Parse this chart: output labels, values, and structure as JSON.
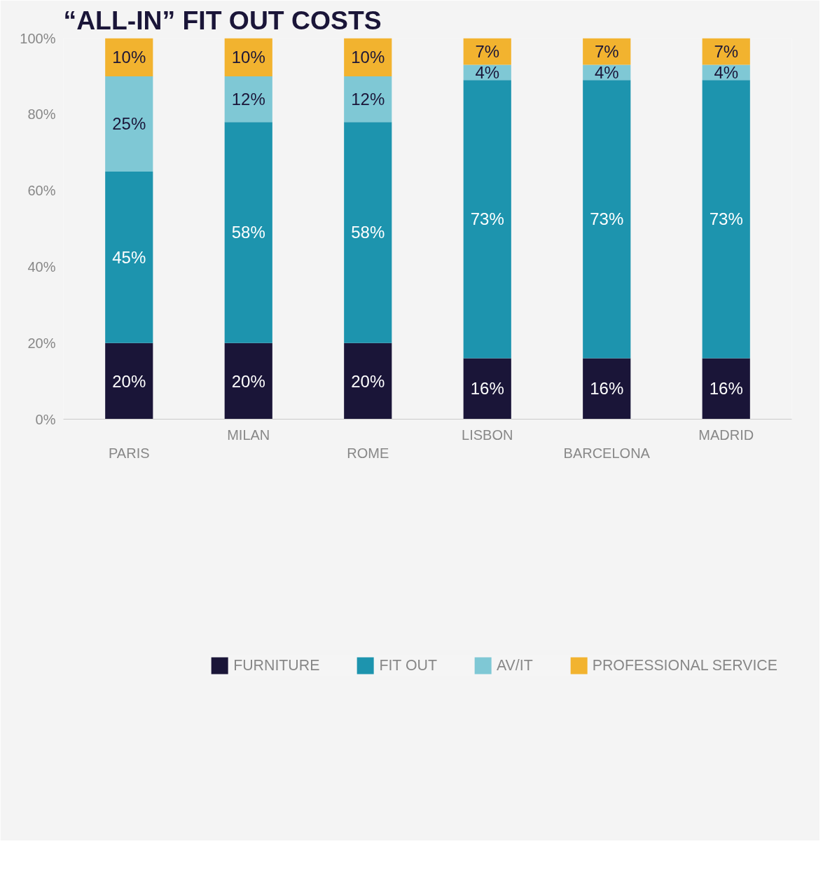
{
  "chart_data": {
    "type": "bar",
    "stacked": true,
    "title": "“ALL-IN” FIT OUT COSTS",
    "categories": [
      "PARIS",
      "MILAN",
      "ROME",
      "LISBON",
      "BARCELONA",
      "MADRID"
    ],
    "series": [
      {
        "name": "FURNITURE",
        "color": "#1a1538",
        "values": [
          20,
          20,
          20,
          16,
          16,
          16
        ],
        "value_labels": [
          "20%",
          "20%",
          "20%",
          "16%",
          "16%",
          "16%"
        ]
      },
      {
        "name": "FIT OUT",
        "color": "#1d94ae",
        "values": [
          45,
          58,
          58,
          73,
          73,
          73
        ],
        "value_labels": [
          "45%",
          "58%",
          "58%",
          "73%",
          "73%",
          "73%"
        ]
      },
      {
        "name": "AV/IT",
        "color": "#7fc8d5",
        "values": [
          25,
          12,
          12,
          4,
          4,
          4
        ],
        "value_labels": [
          "25%",
          "12%",
          "12%",
          "4%",
          "4%",
          "4%"
        ]
      },
      {
        "name": "PROFESSIONAL SERVICE",
        "color": "#f2b32f",
        "values": [
          10,
          10,
          10,
          7,
          7,
          7
        ],
        "value_labels": [
          "10%",
          "10%",
          "10%",
          "7%",
          "7%",
          "7%"
        ]
      }
    ],
    "ylim": [
      0,
      100
    ],
    "yticks": [
      {
        "value": 0,
        "label": "0%"
      },
      {
        "value": 20,
        "label": "20%"
      },
      {
        "value": 40,
        "label": "40%"
      },
      {
        "value": 60,
        "label": "60%"
      },
      {
        "value": 80,
        "label": "80%"
      },
      {
        "value": 100,
        "label": "100%"
      }
    ],
    "grid": false,
    "legend": "bottom"
  }
}
